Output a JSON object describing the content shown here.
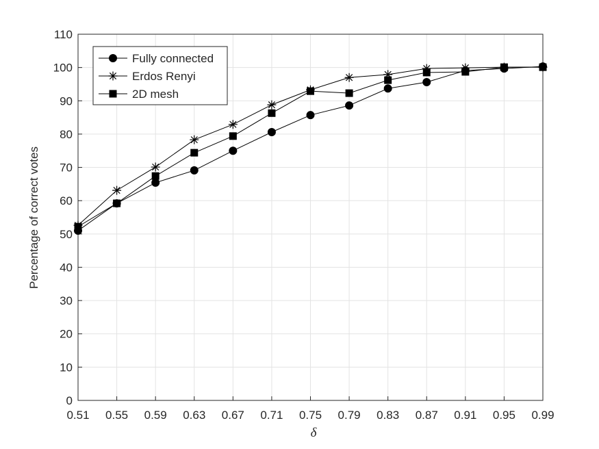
{
  "chart_data": {
    "type": "line",
    "x_label": "δ",
    "y_label": "Percentage of correct votes",
    "x": [
      0.51,
      0.55,
      0.59,
      0.63,
      0.67,
      0.71,
      0.75,
      0.79,
      0.83,
      0.87,
      0.91,
      0.95,
      0.99
    ],
    "series": [
      {
        "name": "Fully connected",
        "color": "#000000",
        "marker": "o",
        "values": [
          51.0,
          59.2,
          65.4,
          69.1,
          75.0,
          80.6,
          85.7,
          88.6,
          93.7,
          95.6,
          99.1,
          99.7,
          100.3
        ]
      },
      {
        "name": "Erdos Renyi",
        "color": "#000000",
        "marker": "*",
        "values": [
          52.6,
          63.1,
          70.1,
          78.3,
          82.9,
          88.8,
          93.3,
          97.0,
          97.9,
          99.7,
          99.9,
          100.1,
          100.1
        ]
      },
      {
        "name": "2D mesh",
        "color": "#000000",
        "marker": "s",
        "values": [
          52.2,
          59.2,
          67.4,
          74.4,
          79.4,
          86.3,
          92.9,
          92.3,
          96.2,
          98.5,
          98.7,
          100.1,
          100.1
        ]
      }
    ],
    "xlim": [
      0.51,
      0.99
    ],
    "xticks": [
      0.51,
      0.55,
      0.59,
      0.63,
      0.67,
      0.71,
      0.75,
      0.79,
      0.83,
      0.87,
      0.91,
      0.95,
      0.99
    ],
    "ylim": [
      0,
      110
    ],
    "yticks": [
      0,
      10,
      20,
      30,
      40,
      50,
      60,
      70,
      80,
      90,
      100,
      110
    ],
    "grid": true,
    "legend": "upper left"
  }
}
